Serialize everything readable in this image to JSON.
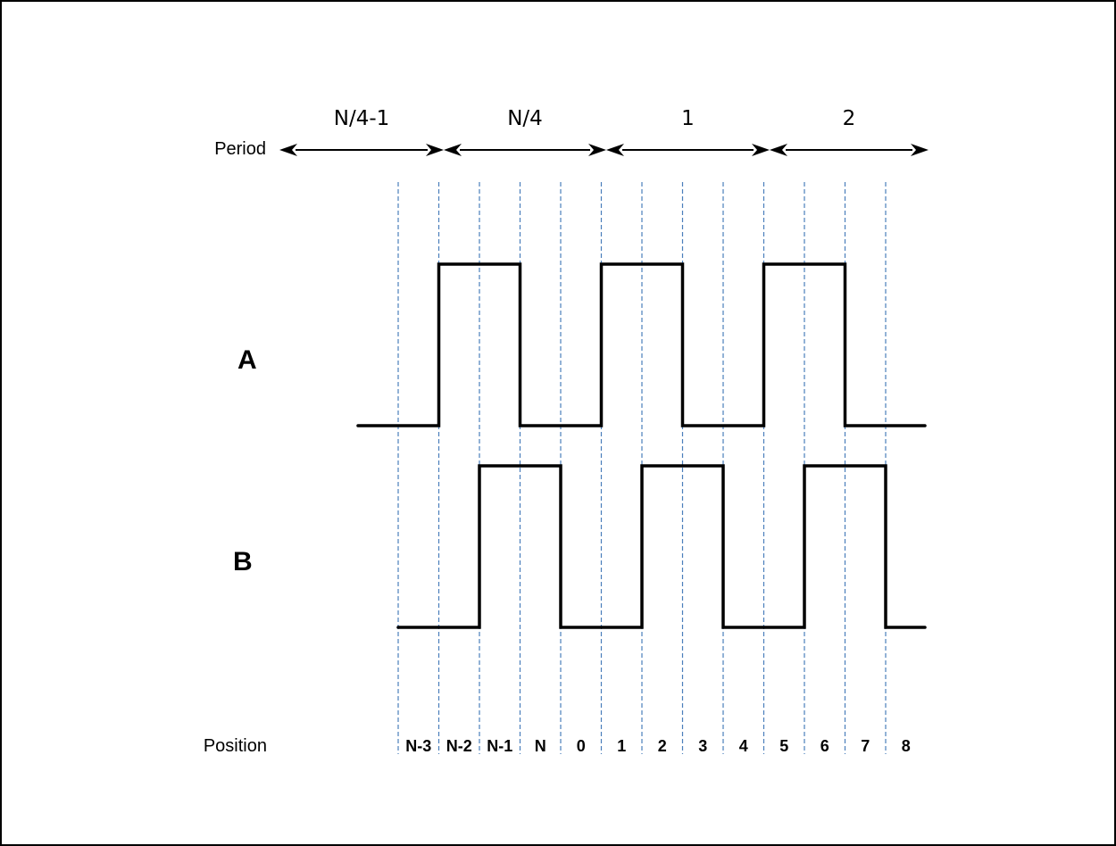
{
  "period_row": {
    "label": "Period",
    "periods": [
      "N/4-1",
      "N/4",
      "1",
      "2"
    ]
  },
  "signals": [
    {
      "name": "A",
      "levels": [
        0,
        1,
        1,
        0,
        0,
        1,
        1,
        0,
        0,
        1,
        1,
        0,
        0
      ]
    },
    {
      "name": "B",
      "levels": [
        0,
        0,
        1,
        1,
        0,
        0,
        1,
        1,
        0,
        0,
        1,
        1,
        0
      ]
    }
  ],
  "position_row": {
    "label": "Position",
    "positions": [
      "N-3",
      "N-2",
      "N-1",
      "N",
      "0",
      "1",
      "2",
      "3",
      "4",
      "5",
      "6",
      "7",
      "8"
    ]
  },
  "colors": {
    "grid": "#4a7ebb",
    "wave": "#000000",
    "border": "#000000"
  }
}
